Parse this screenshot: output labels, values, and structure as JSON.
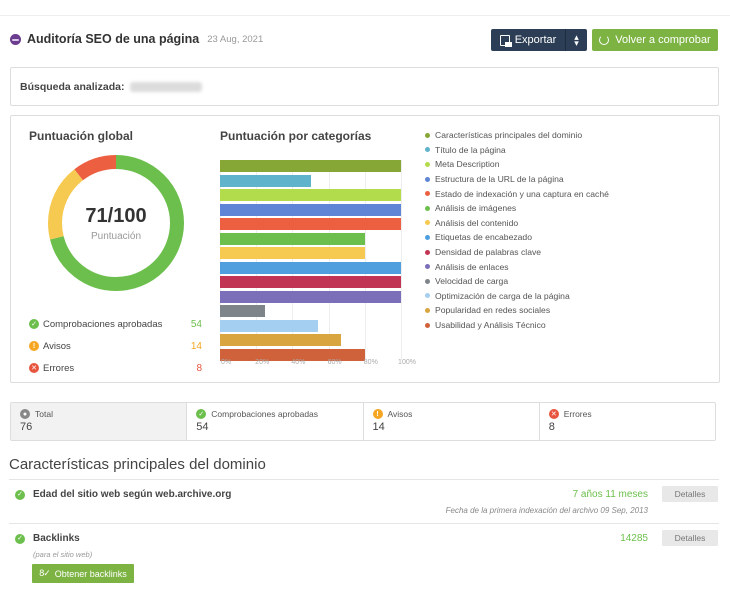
{
  "header": {
    "title": "Auditoría SEO de una página",
    "date": "23 Aug, 2021",
    "export_label": "Exportar",
    "recheck_label": "Volver a comprobar"
  },
  "search": {
    "label": "Búsqueda analizada:",
    "value": "(blurred)"
  },
  "overview": {
    "global_title": "Puntuación global",
    "score": "71/100",
    "score_label": "Puntuación",
    "categories_title": "Puntuación por categorías",
    "legend": [
      {
        "label": "Comprobaciones aprobadas",
        "value": "54",
        "color": "#6cbf4c"
      },
      {
        "label": "Avisos",
        "value": "14",
        "color": "#f5a623"
      },
      {
        "label": "Errores",
        "value": "8",
        "color": "#e8553e"
      }
    ]
  },
  "chart_data": [
    {
      "type": "pie",
      "title": "Puntuación global",
      "center_label": "71/100",
      "categories": [
        "Comprobaciones aprobadas",
        "Avisos",
        "Errores"
      ],
      "values": [
        54,
        14,
        8
      ],
      "colors": [
        "#6cbf4c",
        "#f6c950",
        "#ec6041"
      ]
    },
    {
      "type": "bar",
      "orientation": "horizontal",
      "title": "Puntuación por categorías",
      "xlabel": "",
      "ylabel": "",
      "xlim": [
        0,
        100
      ],
      "xticks": [
        "0%",
        "20%",
        "40%",
        "60%",
        "80%",
        "100%"
      ],
      "grid": true,
      "legend_position": "right",
      "categories": [
        "Características principales del dominio",
        "Título de la página",
        "Meta Description",
        "Estructura de la URL de la página",
        "Estado de indexación y una captura en caché",
        "Análisis de imágenes",
        "Análisis del contenido",
        "Etiquetas de encabezado",
        "Densidad de palabras clave",
        "Análisis de enlaces",
        "Velocidad de carga",
        "Optimización de carga de la página",
        "Popularidad en redes sociales",
        "Usabilidad y Análisis Técnico"
      ],
      "values": [
        100,
        50,
        100,
        100,
        100,
        80,
        80,
        100,
        100,
        100,
        25,
        54,
        67,
        80
      ],
      "colors": [
        "#86a736",
        "#5fb3cb",
        "#b2dc4c",
        "#5f86d6",
        "#ec6041",
        "#6cbf4c",
        "#f6c950",
        "#4f9fdf",
        "#c23454",
        "#7a6fb8",
        "#7e858a",
        "#a4cff0",
        "#d8a53e",
        "#d0623b"
      ]
    }
  ],
  "stats": [
    {
      "label": "Total",
      "value": "76",
      "icon": "total-icon",
      "color": "#888888"
    },
    {
      "label": "Comprobaciones aprobadas",
      "value": "54",
      "icon": "check-icon",
      "color": "#6cbf4c"
    },
    {
      "label": "Avisos",
      "value": "14",
      "icon": "warning-icon",
      "color": "#f5a623"
    },
    {
      "label": "Errores",
      "value": "8",
      "icon": "error-icon",
      "color": "#e8553e"
    }
  ],
  "section": {
    "title": "Características principales del dominio",
    "items": [
      {
        "name": "Edad del sitio web según web.archive.org",
        "value": "7 años 11 meses",
        "note": "Fecha de la primera indexación del archivo 09 Sep, 2013",
        "details_label": "Detalles"
      },
      {
        "name": "Backlinks",
        "sub": "(para el sitio web)",
        "value": "14285",
        "details_label": "Detalles",
        "action_label": "Obtener backlinks"
      }
    ]
  }
}
